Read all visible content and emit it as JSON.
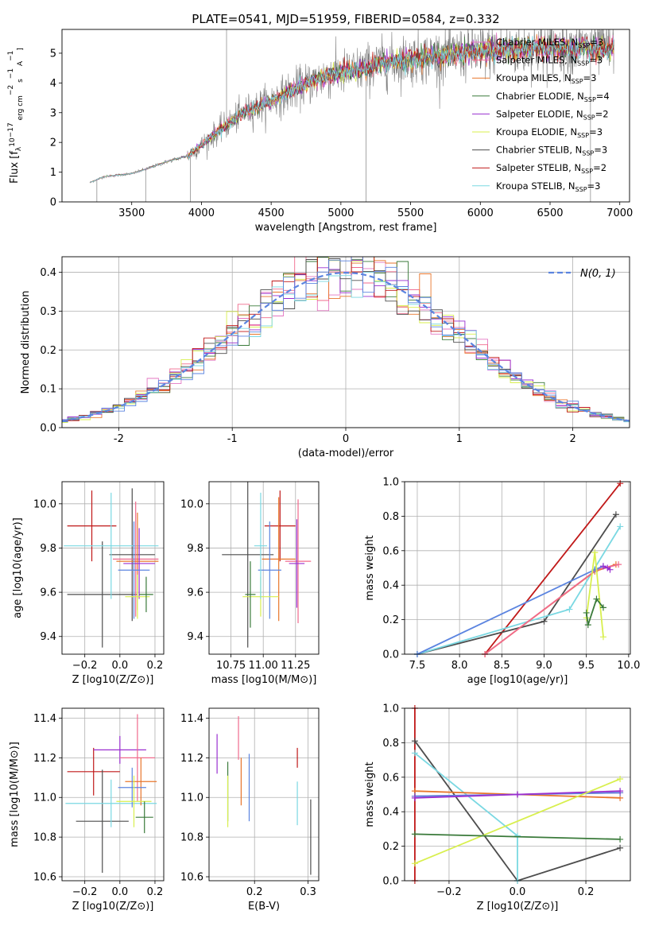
{
  "figure_title": "PLATE=0541, MJD=51959, FIBERID=0584, z=0.332",
  "palette": {
    "chabrier_miles": "#e377c2",
    "salpeter_miles": "#f06a8c",
    "kroupa_miles": "#e8762c",
    "chabrier_elodie": "#3a7a3a",
    "salpeter_elodie": "#9a2fd0",
    "kroupa_elodie": "#d8ef4e",
    "chabrier_stelib": "#4d4d4d",
    "salpeter_stelib": "#c01818",
    "kroupa_stelib": "#7ad8e2",
    "normal_curve": "#5b84e0",
    "grid": "#b0b0b0",
    "data_spectrum": "#808080"
  },
  "chart_data": [
    {
      "id": "spectrum",
      "type": "line",
      "xlabel": "wavelength [Angstrom, rest frame]",
      "ylabel_parts": [
        "Flux [f",
        "λ",
        "10",
        "−17",
        " erg cm",
        "−2",
        " s",
        "−1",
        " A",
        "−1",
        "]"
      ],
      "xlim": [
        3000,
        7070
      ],
      "ylim": [
        0,
        5.8
      ],
      "xticks": [
        3500,
        4000,
        4500,
        5000,
        5500,
        6000,
        6500,
        7000
      ],
      "yticks": [
        0,
        1,
        2,
        3,
        4,
        5
      ],
      "xrange_data": [
        3200,
        6960
      ],
      "continuum_anchors": [
        [
          3200,
          0.65
        ],
        [
          3300,
          0.85
        ],
        [
          3500,
          0.95
        ],
        [
          3600,
          1.1
        ],
        [
          3750,
          1.35
        ],
        [
          3900,
          1.55
        ],
        [
          4000,
          1.9
        ],
        [
          4100,
          2.3
        ],
        [
          4300,
          3.0
        ],
        [
          4500,
          3.4
        ],
        [
          4700,
          3.85
        ],
        [
          4900,
          4.25
        ],
        [
          5100,
          4.4
        ],
        [
          5300,
          4.65
        ],
        [
          5500,
          4.8
        ],
        [
          5800,
          4.95
        ],
        [
          6100,
          5.1
        ],
        [
          6500,
          5.2
        ],
        [
          6960,
          5.15
        ]
      ],
      "legend_position": "upper-right",
      "series": [
        {
          "name": "Chabrier MILES",
          "nssp": "3",
          "color_key": "chabrier_miles"
        },
        {
          "name": "Salpeter MILES",
          "nssp": "3",
          "color_key": "salpeter_miles"
        },
        {
          "name": "Kroupa MILES",
          "nssp": "3",
          "color_key": "kroupa_miles"
        },
        {
          "name": "Chabrier ELODIE",
          "nssp": "4",
          "color_key": "chabrier_elodie"
        },
        {
          "name": "Salpeter ELODIE",
          "nssp": "2",
          "color_key": "salpeter_elodie"
        },
        {
          "name": "Kroupa ELODIE",
          "nssp": "3",
          "color_key": "kroupa_elodie"
        },
        {
          "name": "Chabrier STELIB",
          "nssp": "3",
          "color_key": "chabrier_stelib"
        },
        {
          "name": "Salpeter STELIB",
          "nssp": "2",
          "color_key": "salpeter_stelib"
        },
        {
          "name": "Kroupa STELIB",
          "nssp": "3",
          "color_key": "kroupa_stelib"
        }
      ]
    },
    {
      "id": "residuals",
      "type": "histogram",
      "xlabel": "(data-model)/error",
      "ylabel": "Normed distribution",
      "xlim": [
        -2.5,
        2.5
      ],
      "ylim": [
        0,
        0.44
      ],
      "xticks": [
        -2,
        -1,
        0,
        1,
        2
      ],
      "yticks": [
        0.0,
        0.1,
        0.2,
        0.3,
        0.4
      ],
      "grid": true,
      "bin_width": 0.1,
      "legend_position": "upper-right",
      "normal_label": "N(0, 1)"
    },
    {
      "id": "age_vs_Z",
      "type": "errorbar",
      "xlabel": "Z [log10(Z/Z⊙)]",
      "ylabel": "age [log10(age/yr)]",
      "xlim": [
        -0.33,
        0.25
      ],
      "ylim": [
        9.32,
        10.1
      ],
      "xticks": [
        -0.2,
        0.0,
        0.2
      ],
      "yticks": [
        9.4,
        9.6,
        9.8,
        10.0
      ],
      "grid": true,
      "points": [
        {
          "color_key": "salpeter_stelib",
          "x": -0.16,
          "xerr": 0.14,
          "y": 9.9,
          "yerr": 0.16
        },
        {
          "color_key": "chabrier_stelib",
          "x": -0.1,
          "xerr": 0.2,
          "y": 9.59,
          "yerr": 0.24
        },
        {
          "color_key": "chabrier_stelib",
          "x": 0.07,
          "xerr": 0.13,
          "y": 9.77,
          "yerr": 0.3
        },
        {
          "color_key": "kroupa_stelib",
          "x": -0.05,
          "xerr": 0.27,
          "y": 9.81,
          "yerr": 0.24
        },
        {
          "color_key": "salpeter_miles",
          "x": 0.09,
          "xerr": 0.13,
          "y": 9.75,
          "yerr": 0.26
        },
        {
          "color_key": "kroupa_miles",
          "x": 0.1,
          "xerr": 0.12,
          "y": 9.74,
          "yerr": 0.22
        },
        {
          "color_key": "salpeter_elodie",
          "x": 0.11,
          "xerr": 0.09,
          "y": 9.73,
          "yerr": 0.16
        },
        {
          "color_key": "normal_curve",
          "x": 0.08,
          "xerr": 0.09,
          "y": 9.7,
          "yerr": 0.22
        },
        {
          "color_key": "kroupa_elodie",
          "x": 0.1,
          "xerr": 0.07,
          "y": 9.58,
          "yerr": 0.1
        },
        {
          "color_key": "chabrier_elodie",
          "x": 0.15,
          "xerr": 0.04,
          "y": 9.59,
          "yerr": 0.08
        }
      ]
    },
    {
      "id": "age_vs_mass",
      "type": "errorbar",
      "xlabel": "mass [log10(M/M⊙)]",
      "xlim": [
        10.58,
        11.43
      ],
      "ylim": [
        9.32,
        10.1
      ],
      "xticks": [
        10.75,
        11.0,
        11.25
      ],
      "xtick_labels": [
        "10.75",
        "11.00",
        "11.25"
      ],
      "yticks": [
        9.4,
        9.6,
        9.8,
        10.0
      ],
      "grid": true,
      "points": [
        {
          "color_key": "chabrier_stelib",
          "x": 10.88,
          "xerr": 0.2,
          "y": 9.77,
          "yerr": 0.42
        },
        {
          "color_key": "salpeter_stelib",
          "x": 11.13,
          "xerr": 0.12,
          "y": 9.9,
          "yerr": 0.16
        },
        {
          "color_key": "kroupa_miles",
          "x": 11.12,
          "xerr": 0.13,
          "y": 9.75,
          "yerr": 0.28
        },
        {
          "color_key": "salpeter_miles",
          "x": 11.27,
          "xerr": 0.1,
          "y": 9.74,
          "yerr": 0.28
        },
        {
          "color_key": "salpeter_elodie",
          "x": 11.26,
          "xerr": 0.06,
          "y": 9.73,
          "yerr": 0.2
        },
        {
          "color_key": "normal_curve",
          "x": 11.05,
          "xerr": 0.09,
          "y": 9.7,
          "yerr": 0.22
        },
        {
          "color_key": "kroupa_elodie",
          "x": 10.98,
          "xerr": 0.14,
          "y": 9.58,
          "yerr": 0.09
        },
        {
          "color_key": "chabrier_elodie",
          "x": 10.9,
          "xerr": 0.04,
          "y": 9.59,
          "yerr": 0.15
        },
        {
          "color_key": "kroupa_stelib",
          "x": 10.98,
          "xerr": 0.05,
          "y": 9.81,
          "yerr": 0.24
        }
      ]
    },
    {
      "id": "weight_vs_age",
      "type": "line",
      "xlabel": "age [log10(age/yr)]",
      "ylabel": "mass weight",
      "xlim": [
        7.35,
        10.02
      ],
      "ylim": [
        0,
        1
      ],
      "xticks": [
        7.5,
        8.0,
        8.5,
        9.0,
        9.5,
        10.0
      ],
      "yticks": [
        0.0,
        0.2,
        0.4,
        0.6,
        0.8,
        1.0
      ],
      "grid": true,
      "series": [
        {
          "color_key": "salpeter_stelib",
          "x": [
            8.3,
            9.9
          ],
          "y": [
            0.0,
            0.99
          ]
        },
        {
          "color_key": "chabrier_stelib",
          "x": [
            7.5,
            9.0,
            9.85
          ],
          "y": [
            0.0,
            0.19,
            0.81
          ]
        },
        {
          "color_key": "kroupa_stelib",
          "x": [
            7.5,
            9.3,
            9.9
          ],
          "y": [
            0.0,
            0.26,
            0.74
          ]
        },
        {
          "color_key": "kroupa_miles",
          "x": [
            8.3,
            9.6,
            9.85
          ],
          "y": [
            0.0,
            0.48,
            0.52
          ]
        },
        {
          "color_key": "salpeter_miles",
          "x": [
            8.3,
            9.62,
            9.88
          ],
          "y": [
            0.0,
            0.49,
            0.52
          ]
        },
        {
          "color_key": "normal_curve",
          "x": [
            7.5,
            9.6,
            9.7
          ],
          "y": [
            0.0,
            0.49,
            0.51
          ]
        },
        {
          "color_key": "salpeter_elodie",
          "x": [
            9.7,
            9.75,
            9.78
          ],
          "y": [
            0.51,
            0.5,
            0.49
          ]
        },
        {
          "color_key": "kroupa_elodie",
          "x": [
            9.5,
            9.6,
            9.7
          ],
          "y": [
            0.21,
            0.59,
            0.1
          ]
        },
        {
          "color_key": "chabrier_elodie",
          "x": [
            9.5,
            9.52,
            9.62,
            9.7
          ],
          "y": [
            0.24,
            0.17,
            0.32,
            0.27
          ]
        }
      ]
    },
    {
      "id": "mass_vs_Z",
      "type": "errorbar",
      "xlabel": "Z [log10(Z/Z⊙)]",
      "ylabel": "mass [log10(M/M⊙)]",
      "xlim": [
        -0.33,
        0.25
      ],
      "ylim": [
        10.58,
        11.45
      ],
      "xticks": [
        -0.2,
        0.0,
        0.2
      ],
      "yticks": [
        10.6,
        10.8,
        11.0,
        11.2,
        11.4
      ],
      "grid": true,
      "points": [
        {
          "color_key": "salpeter_stelib",
          "x": -0.15,
          "xerr": 0.15,
          "y": 11.13,
          "yerr": 0.12
        },
        {
          "color_key": "chabrier_stelib",
          "x": -0.1,
          "xerr": 0.15,
          "y": 10.88,
          "yerr": 0.26
        },
        {
          "color_key": "kroupa_stelib",
          "x": -0.05,
          "xerr": 0.26,
          "y": 10.97,
          "yerr": 0.12
        },
        {
          "color_key": "salpeter_elodie",
          "x": 0.0,
          "xerr": 0.15,
          "y": 11.24,
          "yerr": 0.07
        },
        {
          "color_key": "salpeter_miles",
          "x": 0.1,
          "xerr": 0.1,
          "y": 11.2,
          "yerr": 0.22
        },
        {
          "color_key": "kroupa_miles",
          "x": 0.12,
          "xerr": 0.09,
          "y": 11.08,
          "yerr": 0.12
        },
        {
          "color_key": "normal_curve",
          "x": 0.07,
          "xerr": 0.08,
          "y": 11.05,
          "yerr": 0.1
        },
        {
          "color_key": "kroupa_elodie",
          "x": 0.08,
          "xerr": 0.1,
          "y": 10.98,
          "yerr": 0.13
        },
        {
          "color_key": "chabrier_elodie",
          "x": 0.14,
          "xerr": 0.05,
          "y": 10.9,
          "yerr": 0.08
        }
      ]
    },
    {
      "id": "mass_vs_ebv",
      "type": "errorbar",
      "xlabel": "E(B-V)",
      "xlim": [
        0.115,
        0.32
      ],
      "ylim": [
        10.58,
        11.45
      ],
      "xticks": [
        0.2,
        0.3
      ],
      "yticks": [
        10.6,
        10.8,
        11.0,
        11.2,
        11.4
      ],
      "grid": true,
      "points": [
        {
          "color_key": "salpeter_elodie",
          "x": 0.13,
          "y": 11.22,
          "yerr": 0.1
        },
        {
          "color_key": "chabrier_elodie",
          "x": 0.15,
          "y": 11.03,
          "yerr": 0.15
        },
        {
          "color_key": "kroupa_elodie",
          "x": 0.15,
          "y": 10.98,
          "yerr": 0.13
        },
        {
          "color_key": "salpeter_miles",
          "x": 0.17,
          "y": 11.3,
          "yerr": 0.11
        },
        {
          "color_key": "kroupa_miles",
          "x": 0.175,
          "y": 11.08,
          "yerr": 0.12
        },
        {
          "color_key": "normal_curve",
          "x": 0.19,
          "y": 11.05,
          "yerr": 0.17
        },
        {
          "color_key": "salpeter_stelib",
          "x": 0.28,
          "y": 11.2,
          "yerr": 0.05
        },
        {
          "color_key": "kroupa_stelib",
          "x": 0.28,
          "y": 10.97,
          "yerr": 0.11
        },
        {
          "color_key": "chabrier_stelib",
          "x": 0.305,
          "y": 10.8,
          "yerr": 0.19
        }
      ]
    },
    {
      "id": "weight_vs_Z",
      "type": "line",
      "xlabel": "Z [log10(Z/Z⊙)]",
      "ylabel": "mass weight",
      "xlim": [
        -0.33,
        0.33
      ],
      "ylim": [
        0,
        1
      ],
      "xticks": [
        -0.2,
        0.0,
        0.2
      ],
      "yticks": [
        0.0,
        0.2,
        0.4,
        0.6,
        0.8,
        1.0
      ],
      "grid": true,
      "series": [
        {
          "color_key": "salpeter_stelib",
          "x": [
            -0.3,
            -0.3
          ],
          "y": [
            0.0,
            1.0
          ]
        },
        {
          "color_key": "chabrier_stelib",
          "x": [
            -0.3,
            0.0,
            0.3
          ],
          "y": [
            0.81,
            0.0,
            0.19
          ]
        },
        {
          "color_key": "kroupa_stelib",
          "x": [
            -0.3,
            0.0,
            0.0
          ],
          "y": [
            0.74,
            0.26,
            0.0
          ]
        },
        {
          "color_key": "kroupa_miles",
          "x": [
            -0.3,
            0.0,
            0.3
          ],
          "y": [
            0.52,
            0.5,
            0.48
          ]
        },
        {
          "color_key": "salpeter_miles",
          "x": [
            -0.3,
            0.0,
            0.3
          ],
          "y": [
            0.49,
            0.5,
            0.51
          ]
        },
        {
          "color_key": "normal_curve",
          "x": [
            -0.3,
            0.0,
            0.3
          ],
          "y": [
            0.49,
            0.5,
            0.51
          ]
        },
        {
          "color_key": "salpeter_elodie",
          "x": [
            -0.3,
            0.0,
            0.3
          ],
          "y": [
            0.48,
            0.5,
            0.52
          ]
        },
        {
          "color_key": "kroupa_elodie",
          "x": [
            -0.3,
            0.3
          ],
          "y": [
            0.1,
            0.59
          ]
        },
        {
          "color_key": "chabrier_elodie",
          "x": [
            -0.3,
            0.3
          ],
          "y": [
            0.27,
            0.24
          ]
        }
      ]
    }
  ]
}
